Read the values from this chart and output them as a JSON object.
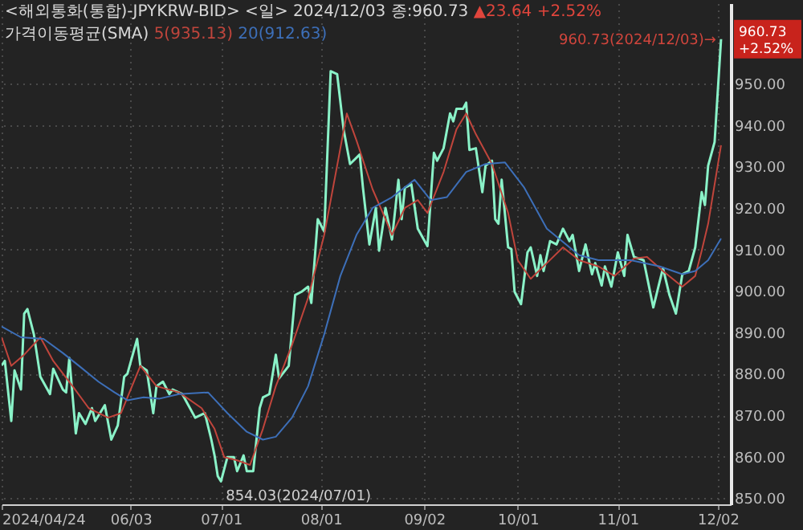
{
  "chart_data": {
    "type": "line",
    "title": "<해외통화(통합)-JPYKRW-BID> <일> 2024/12/03 종:960.73",
    "legend_title": "가격이동평균(SMA)",
    "legend": "top left",
    "grid": true,
    "xlim": [
      "2024-04-24",
      "2024-12-06"
    ],
    "xticks": [
      {
        "value": "2024-04-24",
        "label": "2024/04/24"
      },
      {
        "value": "2024-06-03",
        "label": "06/03"
      },
      {
        "value": "2024-07-01",
        "label": "07/01"
      },
      {
        "value": "2024-08-01",
        "label": "08/01"
      },
      {
        "value": "2024-09-02",
        "label": "09/02"
      },
      {
        "value": "2024-10-01",
        "label": "10/01"
      },
      {
        "value": "2024-11-01",
        "label": "11/01"
      },
      {
        "value": "2024-12-02",
        "label": "12/02"
      }
    ],
    "ylim": [
      848.5,
      969.4
    ],
    "yticks": [
      {
        "value": 850,
        "label": "850.00"
      },
      {
        "value": 860,
        "label": "860.00"
      },
      {
        "value": 870,
        "label": "870.00"
      },
      {
        "value": 880,
        "label": "880.00"
      },
      {
        "value": 890,
        "label": "890.00"
      },
      {
        "value": 900,
        "label": "900.00"
      },
      {
        "value": 910,
        "label": "910.00"
      },
      {
        "value": 920,
        "label": "920.00"
      },
      {
        "value": 930,
        "label": "930.00"
      },
      {
        "value": 940,
        "label": "940.00"
      },
      {
        "value": 950,
        "label": "950.00"
      }
    ],
    "annotations": [
      "▲23.64 +2.52%",
      {
        "text": "960.73(2024/12/03)→",
        "x": "2024-12-03",
        "y": 960.73
      },
      {
        "text": "854.03(2024/07/01)",
        "x": "2024-07-01",
        "y": 854.03
      },
      {
        "text": "960.73\n+2.52%",
        "y": 960.73
      }
    ],
    "series": [
      {
        "color": "#8af2c8",
        "x": [
          "2024-04-24",
          "2024-04-25",
          "2024-04-27",
          "2024-04-28",
          "2024-04-30",
          "2024-05-01",
          "2024-05-02",
          "2024-05-04",
          "2024-05-06",
          "2024-05-09",
          "2024-05-10",
          "2024-05-13",
          "2024-05-14",
          "2024-05-15",
          "2024-05-17",
          "2024-05-18",
          "2024-05-20",
          "2024-05-22",
          "2024-05-23",
          "2024-05-26",
          "2024-05-28",
          "2024-05-30",
          "2024-06-01",
          "2024-06-02",
          "2024-06-05",
          "2024-06-06",
          "2024-06-08",
          "2024-06-10",
          "2024-06-11",
          "2024-06-13",
          "2024-06-15",
          "2024-06-16",
          "2024-06-19",
          "2024-06-23",
          "2024-06-26",
          "2024-06-28",
          "2024-06-29",
          "2024-06-30",
          "2024-07-01",
          "2024-07-03",
          "2024-07-05",
          "2024-07-06",
          "2024-07-08",
          "2024-07-09",
          "2024-07-11",
          "2024-07-13",
          "2024-07-14",
          "2024-07-16",
          "2024-07-18",
          "2024-07-19",
          "2024-07-22",
          "2024-07-24",
          "2024-07-26",
          "2024-07-28",
          "2024-07-29",
          "2024-07-31",
          "2024-08-02",
          "2024-08-04",
          "2024-08-06",
          "2024-08-08",
          "2024-08-10",
          "2024-08-13",
          "2024-08-14",
          "2024-08-16",
          "2024-08-18",
          "2024-08-19",
          "2024-08-21",
          "2024-08-23",
          "2024-08-25",
          "2024-08-26",
          "2024-08-27",
          "2024-08-29",
          "2024-08-31",
          "2024-09-03",
          "2024-09-05",
          "2024-09-06",
          "2024-09-08",
          "2024-09-10",
          "2024-09-11",
          "2024-09-12",
          "2024-09-14",
          "2024-09-15",
          "2024-09-16",
          "2024-09-18",
          "2024-09-20",
          "2024-09-21",
          "2024-09-23",
          "2024-09-24",
          "2024-09-25",
          "2024-09-26",
          "2024-09-28",
          "2024-09-29",
          "2024-09-30",
          "2024-10-02",
          "2024-10-04",
          "2024-10-05",
          "2024-10-07",
          "2024-10-08",
          "2024-10-09",
          "2024-10-11",
          "2024-10-13",
          "2024-10-15",
          "2024-10-17",
          "2024-10-18",
          "2024-10-20",
          "2024-10-22",
          "2024-10-24",
          "2024-10-25",
          "2024-10-27",
          "2024-10-28",
          "2024-10-30",
          "2024-11-01",
          "2024-11-03",
          "2024-11-04",
          "2024-11-06",
          "2024-11-09",
          "2024-11-12",
          "2024-11-15",
          "2024-11-17",
          "2024-11-19",
          "2024-11-21",
          "2024-11-23",
          "2024-11-25",
          "2024-11-27",
          "2024-11-28",
          "2024-11-29",
          "2024-12-01",
          "2024-12-03"
        ],
        "values": [
          882,
          883.1,
          868.6,
          880.8,
          876.2,
          894.5,
          895.6,
          889.5,
          879.3,
          875.1,
          881.2,
          876.2,
          875.5,
          883.8,
          865.6,
          870.5,
          867.9,
          871.7,
          868.6,
          872.4,
          864.1,
          867.5,
          879.3,
          880,
          888.4,
          881.9,
          880.8,
          870.5,
          877,
          878.1,
          875.1,
          876.2,
          875.1,
          869.4,
          870.5,
          864.1,
          860.3,
          855.3,
          854.03,
          859.9,
          859.9,
          856.5,
          860.3,
          856.5,
          856.5,
          871.7,
          874.3,
          875.1,
          884.6,
          878.9,
          881.9,
          899,
          899.8,
          901,
          897.1,
          917.3,
          914.3,
          953,
          952.3,
          939,
          930.6,
          932.9,
          924.9,
          911.2,
          920,
          909.7,
          920,
          912.4,
          926.8,
          917.3,
          924.9,
          925.7,
          915,
          910.8,
          933.3,
          931.4,
          934.4,
          942.8,
          940.9,
          943.9,
          943.9,
          945.4,
          934,
          934.4,
          923.8,
          930.2,
          931.4,
          917.3,
          916.2,
          926.8,
          910.5,
          910.1,
          899.8,
          896.8,
          909.3,
          910.5,
          903.6,
          908.6,
          904.8,
          912,
          911.2,
          915,
          912,
          913.5,
          904.8,
          911.2,
          904,
          906.7,
          901.3,
          905.9,
          901,
          909.3,
          903.6,
          913.5,
          908.2,
          907.4,
          896,
          905.5,
          899,
          894.5,
          904,
          904.8,
          910.5,
          923.8,
          920.7,
          930.2,
          935.9,
          960.73
        ]
      },
      {
        "name": "5(935.13)",
        "color": "#c0453c",
        "x": [
          "2024-04-24",
          "2024-04-27",
          "2024-05-01",
          "2024-05-06",
          "2024-05-10",
          "2024-05-16",
          "2024-05-21",
          "2024-05-27",
          "2024-05-31",
          "2024-06-06",
          "2024-06-11",
          "2024-06-18",
          "2024-06-25",
          "2024-06-29",
          "2024-07-02",
          "2024-07-06",
          "2024-07-10",
          "2024-07-14",
          "2024-07-18",
          "2024-07-23",
          "2024-07-28",
          "2024-08-02",
          "2024-08-06",
          "2024-08-09",
          "2024-08-12",
          "2024-08-17",
          "2024-08-21",
          "2024-08-23",
          "2024-08-27",
          "2024-08-31",
          "2024-09-03",
          "2024-09-08",
          "2024-09-12",
          "2024-09-15",
          "2024-09-18",
          "2024-09-23",
          "2024-09-28",
          "2024-10-01",
          "2024-10-05",
          "2024-10-10",
          "2024-10-15",
          "2024-10-20",
          "2024-10-26",
          "2024-10-31",
          "2024-11-06",
          "2024-11-10",
          "2024-11-15",
          "2024-11-21",
          "2024-11-25",
          "2024-11-27",
          "2024-11-29",
          "2024-12-03"
        ],
        "values": [
          888.8,
          881.9,
          884.6,
          888.8,
          883.1,
          877,
          871.7,
          869.4,
          870.5,
          881.9,
          877,
          875.5,
          871.7,
          866.7,
          859.9,
          859.1,
          858,
          866.7,
          877,
          886.9,
          898.3,
          913.5,
          930.2,
          942.8,
          936.3,
          924.5,
          917.3,
          913.5,
          920,
          921.9,
          918.8,
          928.7,
          939,
          942.8,
          937.8,
          930.6,
          918.8,
          907.4,
          902.9,
          906.7,
          910.5,
          907.4,
          905.9,
          903.6,
          907.8,
          908.2,
          904.8,
          901,
          903.6,
          909.7,
          916.2,
          935.13
        ]
      },
      {
        "name": "20(912.63)",
        "color": "#3d6fb8",
        "x": [
          "2024-04-24",
          "2024-04-30",
          "2024-05-07",
          "2024-05-13",
          "2024-05-18",
          "2024-05-24",
          "2024-05-29",
          "2024-06-02",
          "2024-06-07",
          "2024-06-12",
          "2024-06-18",
          "2024-06-27",
          "2024-07-03",
          "2024-07-09",
          "2024-07-14",
          "2024-07-18",
          "2024-07-23",
          "2024-07-28",
          "2024-08-02",
          "2024-08-07",
          "2024-08-12",
          "2024-08-17",
          "2024-08-23",
          "2024-08-30",
          "2024-09-04",
          "2024-09-09",
          "2024-09-15",
          "2024-09-21",
          "2024-09-27",
          "2024-10-03",
          "2024-10-10",
          "2024-10-20",
          "2024-10-26",
          "2024-11-05",
          "2024-11-14",
          "2024-11-21",
          "2024-11-25",
          "2024-11-29",
          "2024-12-03"
        ],
        "values": [
          891.4,
          888.8,
          888.4,
          885,
          881.9,
          878.1,
          875.5,
          873.6,
          874.3,
          874,
          875.1,
          875.5,
          870.5,
          866,
          864.1,
          864.8,
          869.4,
          877,
          889.5,
          903.6,
          913.5,
          920,
          922.6,
          926.8,
          921.9,
          922.6,
          928.7,
          930.6,
          931,
          924.9,
          915,
          908.6,
          907.4,
          907.4,
          905.9,
          904,
          904.8,
          907.4,
          912.63
        ]
      }
    ]
  }
}
